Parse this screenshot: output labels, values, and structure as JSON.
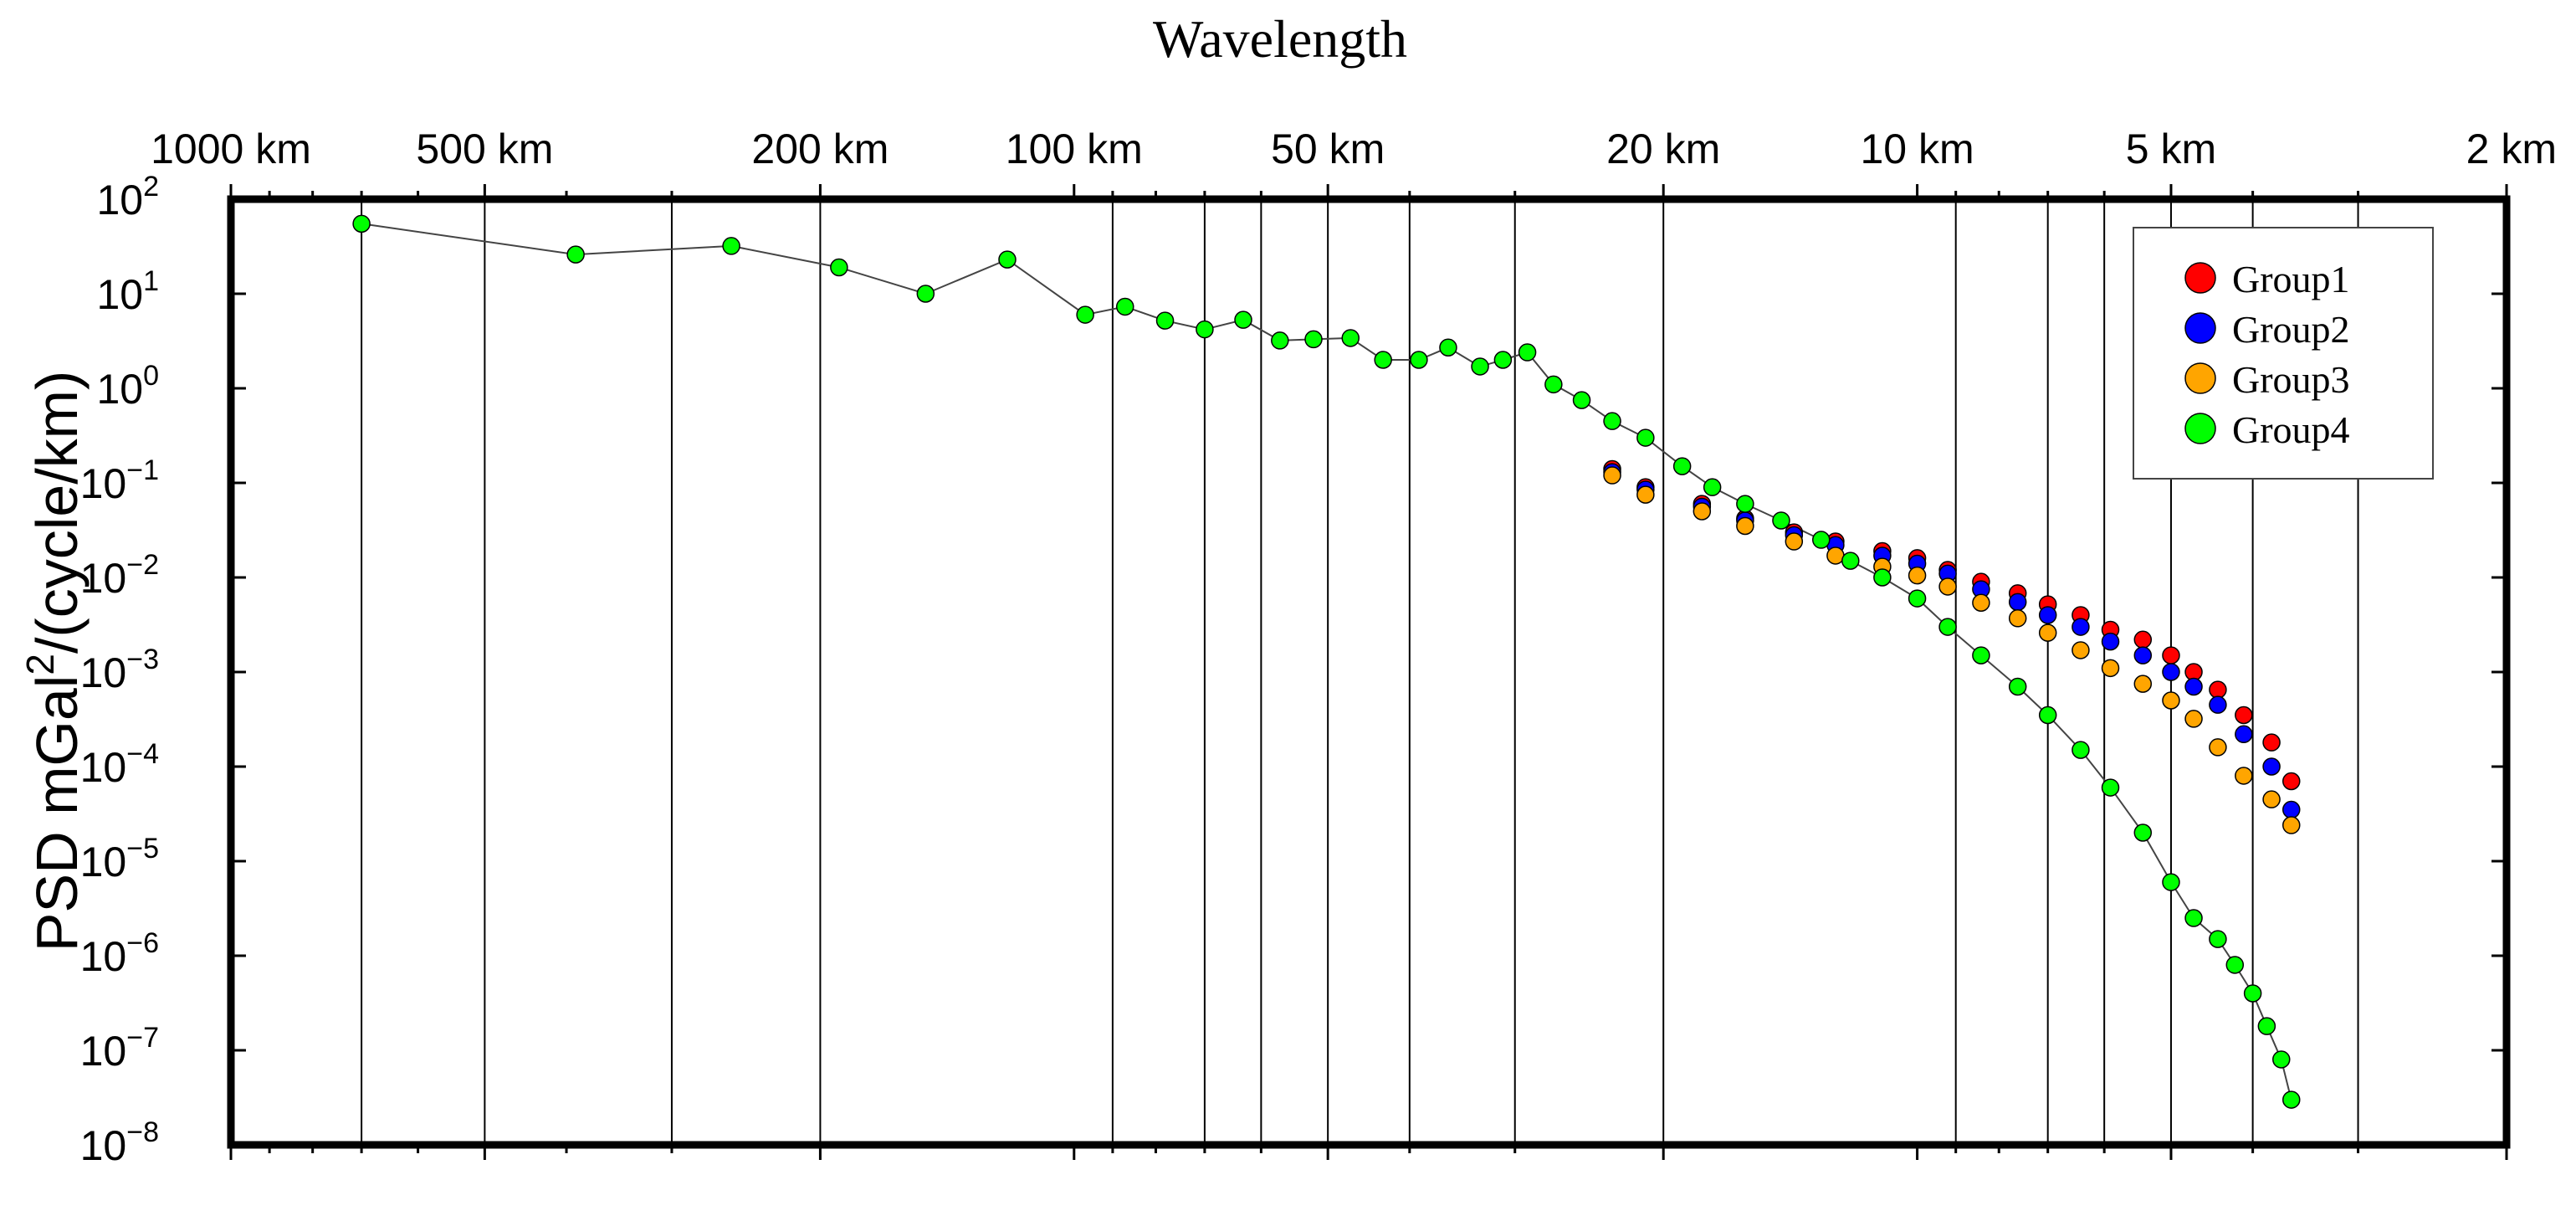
{
  "chart_data": {
    "type": "scatter",
    "title": "Wavelength",
    "ylabel_main": "PSD mGal",
    "ylabel_sup": "2",
    "ylabel_tail": "/(cycle/km)",
    "x_axis": {
      "scale": "log",
      "variable": "wavelength_km",
      "range_km": [
        1000,
        2
      ],
      "tick_labels": [
        {
          "label": "1000 km",
          "km": 1000
        },
        {
          "label": "500 km",
          "km": 500
        },
        {
          "label": "200 km",
          "km": 200
        },
        {
          "label": "100 km",
          "km": 100
        },
        {
          "label": "50 km",
          "km": 50
        },
        {
          "label": "20 km",
          "km": 20
        },
        {
          "label": "10 km",
          "km": 10
        },
        {
          "label": "5 km",
          "km": 5
        },
        {
          "label": "2 km",
          "km": 2
        }
      ]
    },
    "y_axis": {
      "scale": "log",
      "range_exp": [
        -8,
        2
      ],
      "tick_labels": [
        {
          "base": "10",
          "exp": "2"
        },
        {
          "base": "10",
          "exp": "1"
        },
        {
          "base": "10",
          "exp": "0"
        },
        {
          "base": "10",
          "exp": "−1"
        },
        {
          "base": "10",
          "exp": "−2"
        },
        {
          "base": "10",
          "exp": "−3"
        },
        {
          "base": "10",
          "exp": "−4"
        },
        {
          "base": "10",
          "exp": "−5"
        },
        {
          "base": "10",
          "exp": "−6"
        },
        {
          "base": "10",
          "exp": "−7"
        },
        {
          "base": "10",
          "exp": "−8"
        }
      ]
    },
    "grid": "vertical",
    "legend_position": "top-right",
    "series": [
      {
        "name": "Group1",
        "color": "#ff0000",
        "wavelength_km": [
          23,
          21,
          18,
          16,
          14,
          12.5,
          11,
          10,
          9.2,
          8.4,
          7.6,
          7,
          6.4,
          5.9,
          5.4,
          5,
          4.7,
          4.4,
          4.1,
          3.8,
          3.6
        ],
        "psd": [
          0.14,
          0.09,
          0.06,
          0.042,
          0.03,
          0.024,
          0.019,
          0.016,
          0.012,
          0.009,
          0.0068,
          0.0052,
          0.004,
          0.0028,
          0.0022,
          0.0015,
          0.001,
          0.00065,
          0.00035,
          0.00018,
          7e-05
        ]
      },
      {
        "name": "Group2",
        "color": "#0000ff",
        "wavelength_km": [
          23,
          21,
          18,
          16,
          14,
          12.5,
          11,
          10,
          9.2,
          8.4,
          7.6,
          7,
          6.4,
          5.9,
          5.4,
          5,
          4.7,
          4.4,
          4.1,
          3.8,
          3.6
        ],
        "psd": [
          0.13,
          0.085,
          0.056,
          0.04,
          0.028,
          0.022,
          0.017,
          0.014,
          0.011,
          0.0075,
          0.0055,
          0.004,
          0.003,
          0.0021,
          0.0015,
          0.001,
          0.0007,
          0.00045,
          0.00022,
          0.0001,
          3.5e-05
        ]
      },
      {
        "name": "Group3",
        "color": "#ffa500",
        "wavelength_km": [
          23,
          21,
          18,
          16,
          14,
          12.5,
          11,
          10,
          9.2,
          8.4,
          7.6,
          7,
          6.4,
          5.9,
          5.4,
          5,
          4.7,
          4.4,
          4.1,
          3.8,
          3.6
        ],
        "psd": [
          0.12,
          0.075,
          0.05,
          0.035,
          0.024,
          0.017,
          0.013,
          0.0105,
          0.008,
          0.0054,
          0.0037,
          0.0026,
          0.0017,
          0.0011,
          0.00075,
          0.0005,
          0.00032,
          0.00016,
          8e-05,
          4.5e-05,
          2.4e-05
        ]
      },
      {
        "name": "Group4",
        "color": "#00ff00",
        "connected": true,
        "wavelength_km": [
          700,
          390,
          255,
          190,
          150,
          120,
          97,
          87,
          78,
          70,
          63,
          57,
          52,
          47,
          43,
          39,
          36,
          33,
          31,
          29,
          27,
          25,
          23,
          21,
          19,
          17.5,
          16,
          14.5,
          13,
          12,
          11,
          10,
          9.2,
          8.4,
          7.6,
          7,
          6.4,
          5.9,
          5.4,
          5,
          4.7,
          4.4,
          4.2,
          4.0,
          3.85,
          3.7,
          3.6
        ],
        "psd": [
          55,
          26,
          32,
          19,
          10,
          23,
          6,
          7.3,
          5.2,
          4.2,
          5.3,
          3.2,
          3.3,
          3.4,
          2.0,
          2.0,
          2.7,
          1.7,
          2.0,
          2.4,
          1.1,
          0.75,
          0.45,
          0.3,
          0.15,
          0.09,
          0.06,
          0.04,
          0.025,
          0.015,
          0.01,
          0.006,
          0.003,
          0.0015,
          0.0007,
          0.00035,
          0.00015,
          6e-05,
          2e-05,
          6e-06,
          2.5e-06,
          1.5e-06,
          8e-07,
          4e-07,
          1.8e-07,
          8e-08,
          3e-08
        ]
      }
    ]
  }
}
